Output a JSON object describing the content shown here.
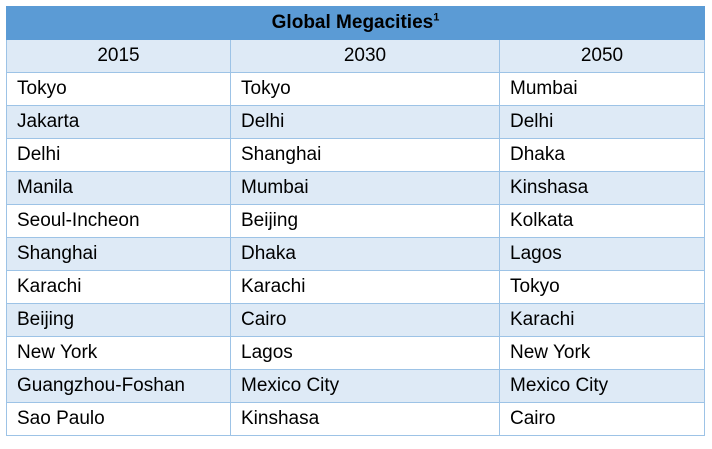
{
  "table": {
    "title": "Global Megacities",
    "title_footnote": "1",
    "headers": [
      "2015",
      "2030",
      "2050"
    ],
    "rows": [
      [
        "Tokyo",
        "Tokyo",
        "Mumbai"
      ],
      [
        "Jakarta",
        "Delhi",
        "Delhi"
      ],
      [
        "Delhi",
        "Shanghai",
        "Dhaka"
      ],
      [
        "Manila",
        "Mumbai",
        "Kinshasa"
      ],
      [
        "Seoul-Incheon",
        "Beijing",
        "Kolkata"
      ],
      [
        "Shanghai",
        "Dhaka",
        "Lagos"
      ],
      [
        "Karachi",
        "Karachi",
        "Tokyo"
      ],
      [
        "Beijing",
        "Cairo",
        "Karachi"
      ],
      [
        "New York",
        "Lagos",
        "New York"
      ],
      [
        "Guangzhou-Foshan",
        "Mexico City",
        "Mexico City"
      ],
      [
        "Sao Paulo",
        "Kinshasa",
        "Cairo"
      ]
    ]
  },
  "colors": {
    "title_background": "#5b9bd5",
    "header_background": "#deeaf6",
    "band_background": "#deeaf6",
    "border": "#9dc3e6"
  }
}
